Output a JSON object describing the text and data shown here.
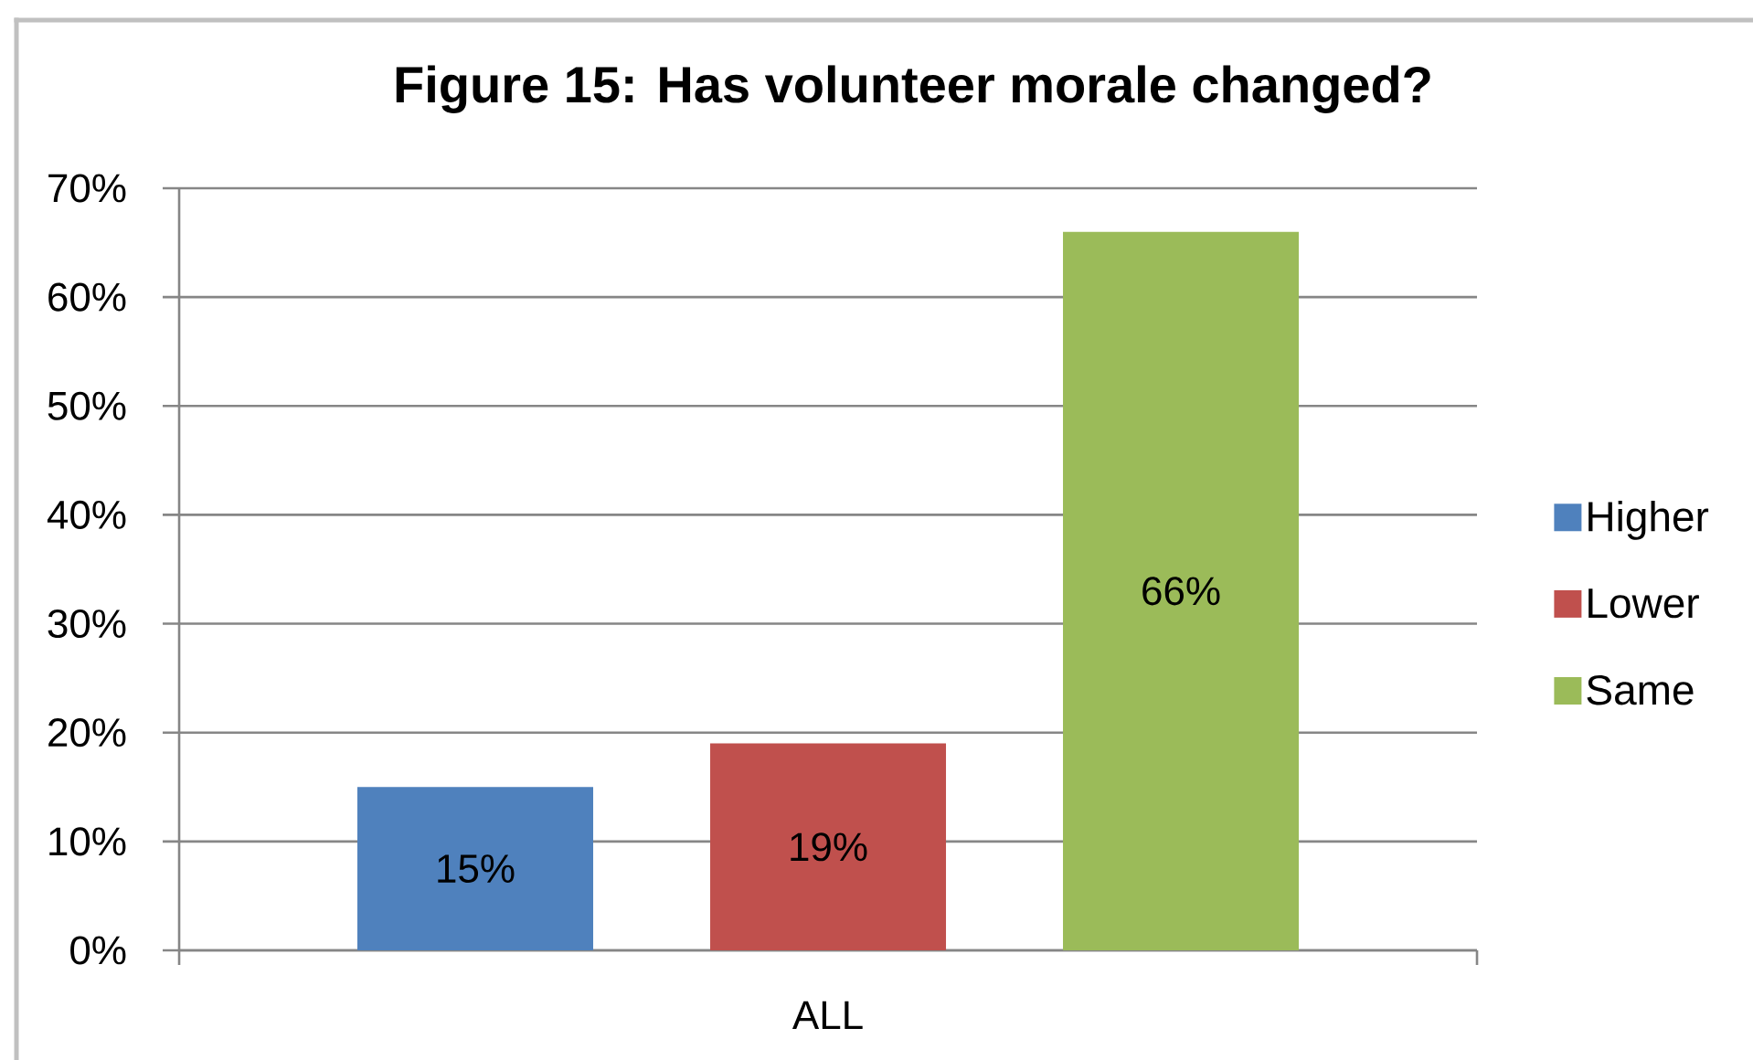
{
  "chart_data": {
    "type": "bar",
    "title": "Figure 15: Has volunteer morale changed?",
    "categories": [
      "ALL"
    ],
    "series": [
      {
        "name": "Higher",
        "color": "#4f81bd",
        "values": [
          15
        ],
        "value_labels": [
          "15%"
        ]
      },
      {
        "name": "Lower",
        "color": "#c0504d",
        "values": [
          19
        ],
        "value_labels": [
          "19%"
        ]
      },
      {
        "name": "Same",
        "color": "#9bbb59",
        "values": [
          66
        ],
        "value_labels": [
          "66%"
        ]
      }
    ],
    "ylim": [
      0,
      70
    ],
    "yticks": [
      {
        "value": 0,
        "label": "0%"
      },
      {
        "value": 10,
        "label": "10%"
      },
      {
        "value": 20,
        "label": "20%"
      },
      {
        "value": 30,
        "label": "30%"
      },
      {
        "value": 40,
        "label": "40%"
      },
      {
        "value": 50,
        "label": "50%"
      },
      {
        "value": 60,
        "label": "60%"
      },
      {
        "value": 70,
        "label": "70%"
      }
    ],
    "grid": "y",
    "legend": "right"
  }
}
